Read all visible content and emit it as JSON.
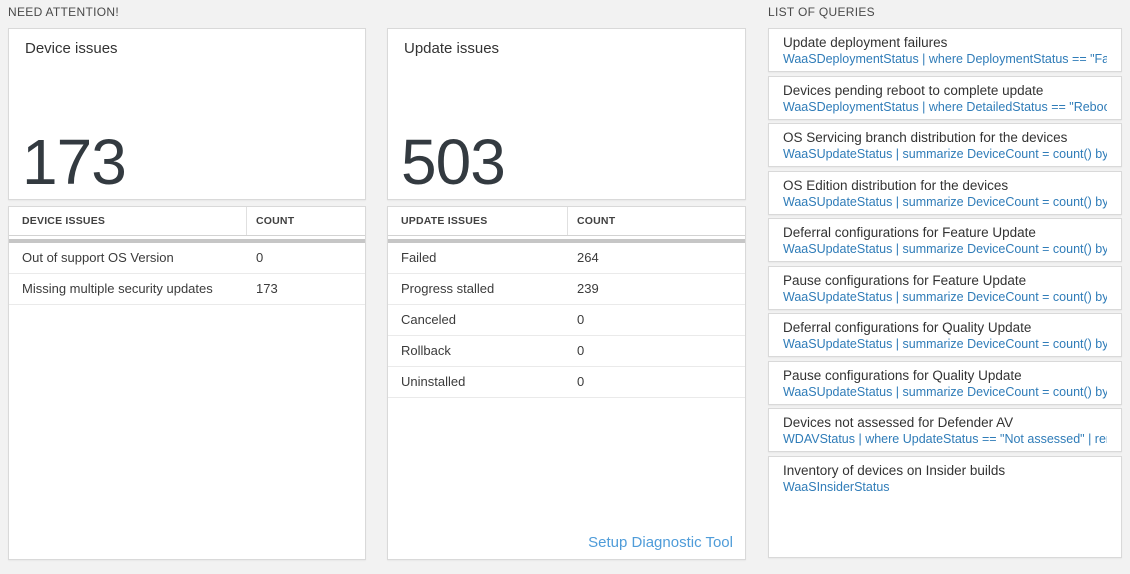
{
  "sections": {
    "need_attention_title": "NEED ATTENTION!",
    "queries_title": "LIST OF QUERIES"
  },
  "tiles": {
    "device_issues": {
      "title": "Device issues",
      "big_number": "173",
      "table": {
        "headers": [
          "DEVICE ISSUES",
          "COUNT"
        ],
        "rows": [
          {
            "label": "Out of support OS Version",
            "count": "0"
          },
          {
            "label": "Missing multiple security updates",
            "count": "173"
          }
        ]
      }
    },
    "update_issues": {
      "title": "Update issues",
      "big_number": "503",
      "table": {
        "headers": [
          "UPDATE ISSUES",
          "COUNT"
        ],
        "rows": [
          {
            "label": "Failed",
            "count": "264"
          },
          {
            "label": "Progress stalled",
            "count": "239"
          },
          {
            "label": "Canceled",
            "count": "0"
          },
          {
            "label": "Rollback",
            "count": "0"
          },
          {
            "label": "Uninstalled",
            "count": "0"
          }
        ]
      },
      "link_label": "Setup Diagnostic Tool"
    }
  },
  "queries": {
    "items": [
      {
        "title": "Update deployment failures",
        "query": "WaaSDeploymentStatus | where DeploymentStatus == \"Failed\" |..."
      },
      {
        "title": "Devices pending reboot to complete update",
        "query": "WaaSDeploymentStatus | where DetailedStatus == \"Reboot pend..."
      },
      {
        "title": "OS Servicing branch distribution for the devices",
        "query": "WaaSUpdateStatus | summarize DeviceCount = count() by OSSer..."
      },
      {
        "title": "OS Edition distribution for the devices",
        "query": "WaaSUpdateStatus | summarize DeviceCount = count() by OSEdit..."
      },
      {
        "title": "Deferral configurations for Feature Update",
        "query": "WaaSUpdateStatus | summarize DeviceCount = count() by Featur..."
      },
      {
        "title": "Pause configurations for Feature Update",
        "query": "WaaSUpdateStatus | summarize DeviceCount = count() by Featur..."
      },
      {
        "title": "Deferral configurations for Quality Update",
        "query": "WaaSUpdateStatus | summarize DeviceCount = count() by Qualit..."
      },
      {
        "title": "Pause configurations for Quality Update",
        "query": "WaaSUpdateStatus | summarize DeviceCount = count() by Qualit..."
      },
      {
        "title": "Devices not assessed for Defender AV",
        "query": "WDAVStatus | where UpdateStatus == \"Not assessed\" | render ta..."
      },
      {
        "title": "Inventory of devices on Insider builds",
        "query": "WaaSInsiderStatus"
      }
    ]
  },
  "colors": {
    "page_background": "#f2f2f2",
    "card_border": "#d9d9d9",
    "big_number_text": "#333a40",
    "query_link_blue": "#2f7cb8",
    "diagnostic_link_blue": "#4f9cd9",
    "scrollbar_gray": "#c6c6c6"
  }
}
